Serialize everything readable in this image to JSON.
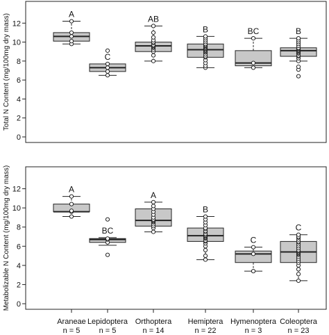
{
  "chart_data": [
    {
      "type": "boxplot",
      "ylabel": "Total N Content (mg/100mg dry mass)",
      "ylim": [
        0,
        14
      ],
      "yticks": [
        0,
        2,
        4,
        6,
        8,
        10,
        12
      ],
      "categories": [
        "Araneae",
        "Lepidoptera",
        "Orthoptera",
        "Hemiptera",
        "Hymenoptera",
        "Coleoptera"
      ],
      "boxes": [
        {
          "category": "Araneae",
          "letter": "A",
          "whisker_low": 9.8,
          "q1": 10.1,
          "median": 10.6,
          "q3": 11.0,
          "whisker_high": 12.2,
          "points": [
            9.8,
            10.1,
            10.6,
            11.0,
            12.2
          ]
        },
        {
          "category": "Lepidoptera",
          "letter": "C",
          "whisker_low": 6.5,
          "q1": 6.9,
          "median": 7.3,
          "q3": 7.7,
          "whisker_high": 7.7,
          "points": [
            6.5,
            6.9,
            7.3,
            7.7,
            9.1
          ]
        },
        {
          "category": "Orthoptera",
          "letter": "AB",
          "whisker_low": 8.0,
          "q1": 9.0,
          "median": 9.6,
          "q3": 10.0,
          "whisker_high": 11.7,
          "points": [
            8.0,
            8.6,
            9.0,
            9.2,
            9.4,
            9.5,
            9.6,
            9.7,
            9.9,
            10.0,
            10.2,
            10.5,
            11.0,
            11.7
          ]
        },
        {
          "category": "Hemiptera",
          "letter": "B",
          "whisker_low": 7.3,
          "q1": 8.4,
          "median": 9.2,
          "q3": 9.8,
          "whisker_high": 10.6,
          "points": [
            7.3,
            7.5,
            7.8,
            8.1,
            8.4,
            8.5,
            8.7,
            8.9,
            9.0,
            9.1,
            9.2,
            9.2,
            9.3,
            9.4,
            9.5,
            9.6,
            9.7,
            9.8,
            10.0,
            10.2,
            10.4,
            10.6
          ]
        },
        {
          "category": "Hymenoptera",
          "letter": "BC",
          "whisker_low": 7.3,
          "q1": 7.5,
          "median": 7.8,
          "q3": 9.1,
          "whisker_high": 10.4,
          "points": [
            7.3,
            7.8,
            10.4
          ]
        },
        {
          "category": "Coleoptera",
          "letter": "B",
          "whisker_low": 8.0,
          "q1": 8.5,
          "median": 9.1,
          "q3": 9.4,
          "whisker_high": 10.4,
          "points": [
            6.4,
            7.1,
            7.4,
            8.0,
            8.3,
            8.5,
            8.6,
            8.8,
            8.9,
            9.0,
            9.1,
            9.1,
            9.2,
            9.2,
            9.3,
            9.3,
            9.4,
            9.4,
            9.6,
            9.8,
            10.0,
            10.2,
            10.4
          ]
        }
      ]
    },
    {
      "type": "boxplot",
      "ylabel": "Metabolizable N Content (mg/100mg dry mass)",
      "ylim": [
        0,
        14
      ],
      "yticks": [
        0,
        2,
        4,
        6,
        8,
        10,
        12
      ],
      "categories": [
        "Araneae",
        "Lepidoptera",
        "Orthoptera",
        "Hemiptera",
        "Hymenoptera",
        "Coleoptera"
      ],
      "boxes": [
        {
          "category": "Araneae",
          "letter": "A",
          "whisker_low": 9.1,
          "q1": 9.6,
          "median": 9.6,
          "q3": 10.4,
          "whisker_high": 11.2,
          "points": [
            9.1,
            9.6,
            9.7,
            10.4,
            11.2
          ]
        },
        {
          "category": "Lepidoptera",
          "letter": "BC",
          "whisker_low": 6.1,
          "q1": 6.4,
          "median": 6.7,
          "q3": 6.8,
          "whisker_high": 6.9,
          "points": [
            5.1,
            6.4,
            6.7,
            6.8,
            8.8
          ]
        },
        {
          "category": "Orthoptera",
          "letter": "A",
          "whisker_low": 7.5,
          "q1": 8.1,
          "median": 8.7,
          "q3": 9.9,
          "whisker_high": 10.6,
          "points": [
            7.5,
            7.9,
            8.1,
            8.3,
            8.5,
            8.6,
            8.7,
            8.8,
            9.0,
            9.3,
            9.6,
            9.9,
            10.2,
            10.6
          ]
        },
        {
          "category": "Hemiptera",
          "letter": "B",
          "whisker_low": 4.6,
          "q1": 6.5,
          "median": 7.1,
          "q3": 7.9,
          "whisker_high": 9.1,
          "points": [
            4.6,
            5.0,
            5.6,
            6.0,
            6.3,
            6.5,
            6.6,
            6.8,
            6.9,
            7.0,
            7.1,
            7.1,
            7.2,
            7.3,
            7.5,
            7.6,
            7.8,
            7.9,
            8.2,
            8.5,
            8.8,
            9.1
          ]
        },
        {
          "category": "Hymenoptera",
          "letter": "C",
          "whisker_low": 3.4,
          "q1": 4.3,
          "median": 5.2,
          "q3": 5.5,
          "whisker_high": 5.9,
          "points": [
            3.4,
            5.2,
            5.9
          ]
        },
        {
          "category": "Coleoptera",
          "letter": "C",
          "whisker_low": 2.4,
          "q1": 4.3,
          "median": 5.4,
          "q3": 6.5,
          "whisker_high": 7.2,
          "points": [
            2.4,
            3.1,
            3.6,
            4.0,
            4.3,
            4.5,
            4.7,
            4.9,
            5.1,
            5.2,
            5.3,
            5.4,
            5.5,
            5.6,
            5.8,
            6.0,
            6.2,
            6.4,
            6.5,
            6.7,
            6.9,
            7.0,
            7.2
          ]
        }
      ]
    }
  ],
  "x_axis": {
    "labels": [
      "Araneae",
      "Lepidoptera",
      "Orthoptera",
      "Hemiptera",
      "Hymenoptera",
      "Coleoptera"
    ],
    "sample_sizes": [
      "n = 5",
      "n = 5",
      "n = 14",
      "n = 22",
      "n = 3",
      "n = 23"
    ]
  },
  "colors": {
    "box_fill": "#c8c8c8",
    "line": "#222222"
  }
}
